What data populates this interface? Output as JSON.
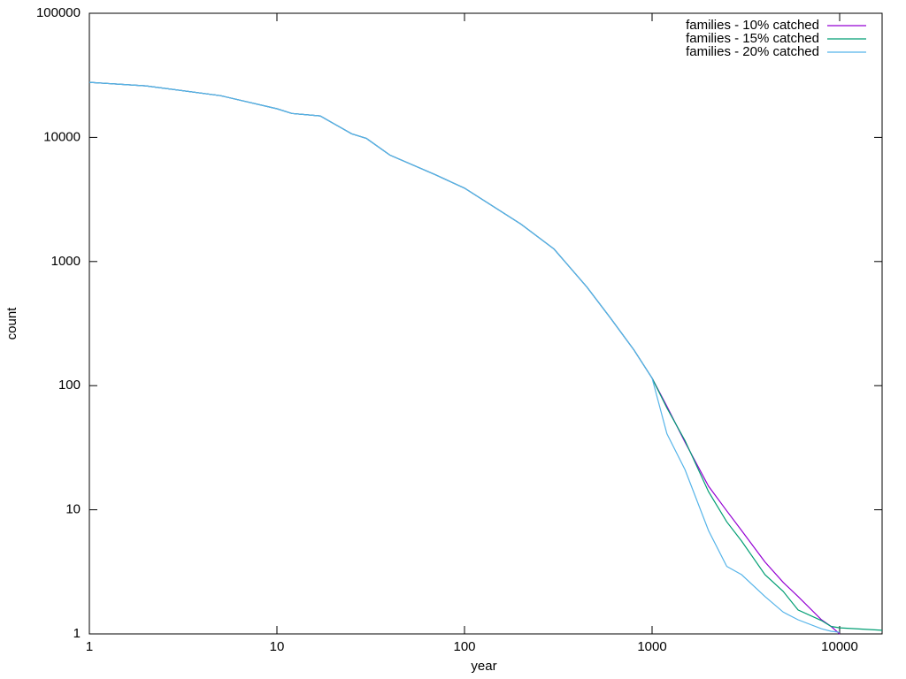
{
  "chart_data": {
    "type": "line",
    "xlabel": "year",
    "ylabel": "count",
    "xscale": "log",
    "yscale": "log",
    "xlim": [
      1,
      16840
    ],
    "ylim": [
      1,
      100000
    ],
    "xticks": [
      1,
      10,
      100,
      1000,
      10000
    ],
    "yticks": [
      1,
      10,
      100,
      1000,
      10000,
      100000
    ],
    "legend": "top-right",
    "x": [
      1,
      2,
      5,
      10,
      12,
      17,
      25,
      30,
      40,
      70,
      100,
      200,
      300,
      450,
      600,
      800,
      1000,
      1200,
      1500,
      2000,
      2500,
      3000,
      4000,
      5000,
      6000,
      8000,
      9000,
      10000,
      16840
    ],
    "series": [
      {
        "name": "families - 10% catched",
        "color": "#9400d3",
        "values": [
          27800,
          26000,
          21700,
          17000,
          15600,
          14900,
          10700,
          9800,
          7200,
          5000,
          3900,
          2000,
          1260,
          620,
          350,
          194,
          115,
          68,
          35,
          15.5,
          9.8,
          6.8,
          3.8,
          2.6,
          2,
          1.3,
          1.15,
          1,
          null
        ]
      },
      {
        "name": "families - 15% catched",
        "color": "#009e73",
        "values": [
          27800,
          26000,
          21700,
          17000,
          15600,
          14900,
          10700,
          9800,
          7200,
          5000,
          3900,
          2000,
          1260,
          620,
          350,
          194,
          115,
          66,
          36,
          14,
          8,
          5.6,
          3,
          2.2,
          1.56,
          1.28,
          1.15,
          1.12,
          1.07
        ]
      },
      {
        "name": "families - 20% catched",
        "color": "#56b4e9",
        "values": [
          27800,
          26000,
          21700,
          17000,
          15600,
          14900,
          10700,
          9800,
          7200,
          5000,
          3900,
          2000,
          1260,
          620,
          350,
          194,
          115,
          41,
          21,
          6.8,
          3.5,
          3,
          2,
          1.5,
          1.3,
          1.1,
          1.05,
          1.03,
          null
        ]
      }
    ]
  }
}
